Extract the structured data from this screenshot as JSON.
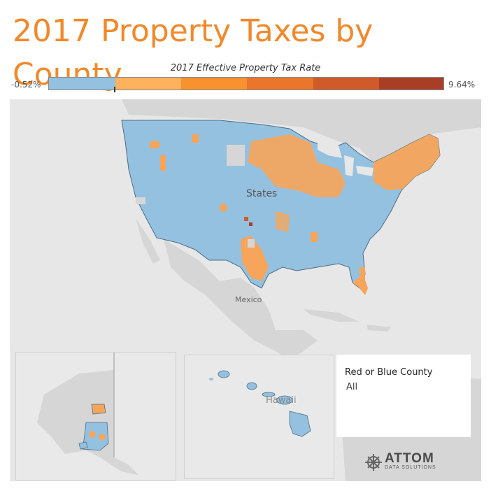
{
  "header": {
    "title": "2017 Property Taxes by County"
  },
  "legend": {
    "title": "2017 Effective Property Tax Rate",
    "min_label": "-0.52%",
    "max_label": "9.64%",
    "colors": [
      "#95c1e0",
      "#ffb25e",
      "#f7922e",
      "#e9762b",
      "#cf5a2a",
      "#a93e26"
    ]
  },
  "map": {
    "labels": {
      "mexico": "Mexico",
      "states": "States",
      "hawaii": "Hawaii"
    },
    "colors": {
      "water": "#e7e7e7",
      "land": "#d6d6d6",
      "low_rate": "#95c1e0",
      "high_rate": "#f6a55a",
      "border": "#4b6d85"
    }
  },
  "filter": {
    "label": "Red or Blue County",
    "value": "All"
  },
  "brand": {
    "name": "ATTOM",
    "tagline": "DATA SOLUTIONS"
  }
}
